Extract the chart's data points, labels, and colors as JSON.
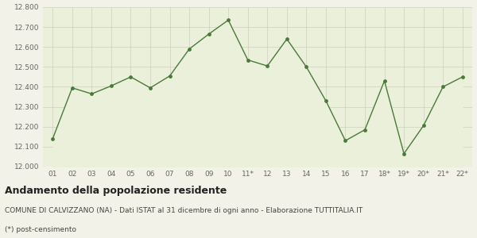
{
  "x_labels": [
    "01",
    "02",
    "03",
    "04",
    "05",
    "06",
    "07",
    "08",
    "09",
    "10",
    "11*",
    "12",
    "13",
    "14",
    "15",
    "16",
    "17",
    "18*",
    "19*",
    "20*",
    "21*",
    "22*"
  ],
  "values": [
    12140,
    12395,
    12365,
    12405,
    12450,
    12395,
    12455,
    12590,
    12665,
    12735,
    12535,
    12505,
    12640,
    12500,
    12330,
    12130,
    12185,
    12430,
    12065,
    12205,
    12400,
    12450
  ],
  "line_color": "#4a7a3a",
  "fill_color": "#eaf0da",
  "marker_color": "#4a7a3a",
  "bg_color": "#f2f2e8",
  "grid_color": "#d0d0c0",
  "ylim": [
    12000,
    12800
  ],
  "yticks": [
    12000,
    12100,
    12200,
    12300,
    12400,
    12500,
    12600,
    12700,
    12800
  ],
  "title": "Andamento della popolazione residente",
  "subtitle": "COMUNE DI CALVIZZANO (NA) - Dati ISTAT al 31 dicembre di ogni anno - Elaborazione TUTTITALIA.IT",
  "footnote": "(*) post-censimento",
  "title_fontsize": 9,
  "subtitle_fontsize": 6.5,
  "footnote_fontsize": 6.5,
  "tick_fontsize": 6.5,
  "axis_label_color": "#666666"
}
